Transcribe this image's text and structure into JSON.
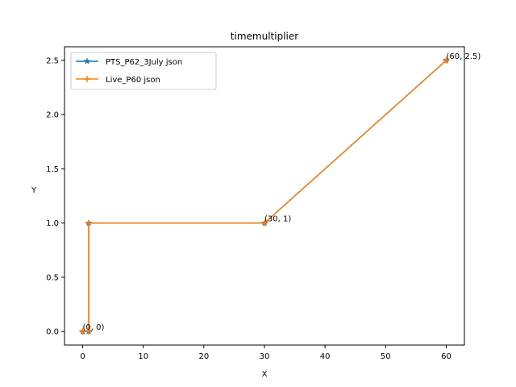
{
  "chart_data": {
    "type": "line",
    "title": "timemultiplier",
    "xlabel": "X",
    "ylabel": "Y",
    "xlim": [
      -3,
      63
    ],
    "ylim": [
      -0.125,
      2.625
    ],
    "xticks": [
      0,
      10,
      20,
      30,
      40,
      50,
      60
    ],
    "yticks": [
      0.0,
      0.5,
      1.0,
      1.5,
      2.0,
      2.5
    ],
    "xtick_labels": [
      "0",
      "10",
      "20",
      "30",
      "40",
      "50",
      "60"
    ],
    "ytick_labels": [
      "0.0",
      "0.5",
      "1.0",
      "1.5",
      "2.0",
      "2.5"
    ],
    "grid": false,
    "legend_position": "upper-left",
    "series": [
      {
        "name": "PTS_P62_3July json",
        "color": "#1f77b4",
        "marker": "star",
        "x": [
          0,
          1,
          1,
          30,
          60
        ],
        "y": [
          0,
          0,
          1,
          1,
          2.5
        ]
      },
      {
        "name": "Live_P60 json",
        "color": "#ff7f0e",
        "marker": "plus",
        "x": [
          0,
          1,
          1,
          30,
          60
        ],
        "y": [
          0,
          0,
          1,
          1,
          2.5
        ]
      }
    ],
    "annotations": [
      {
        "text": "(0, 0)",
        "x": 0,
        "y": 0
      },
      {
        "text": "(30, 1)",
        "x": 30,
        "y": 1
      },
      {
        "text": "(60, 2.5)",
        "x": 60,
        "y": 2.5
      }
    ]
  }
}
